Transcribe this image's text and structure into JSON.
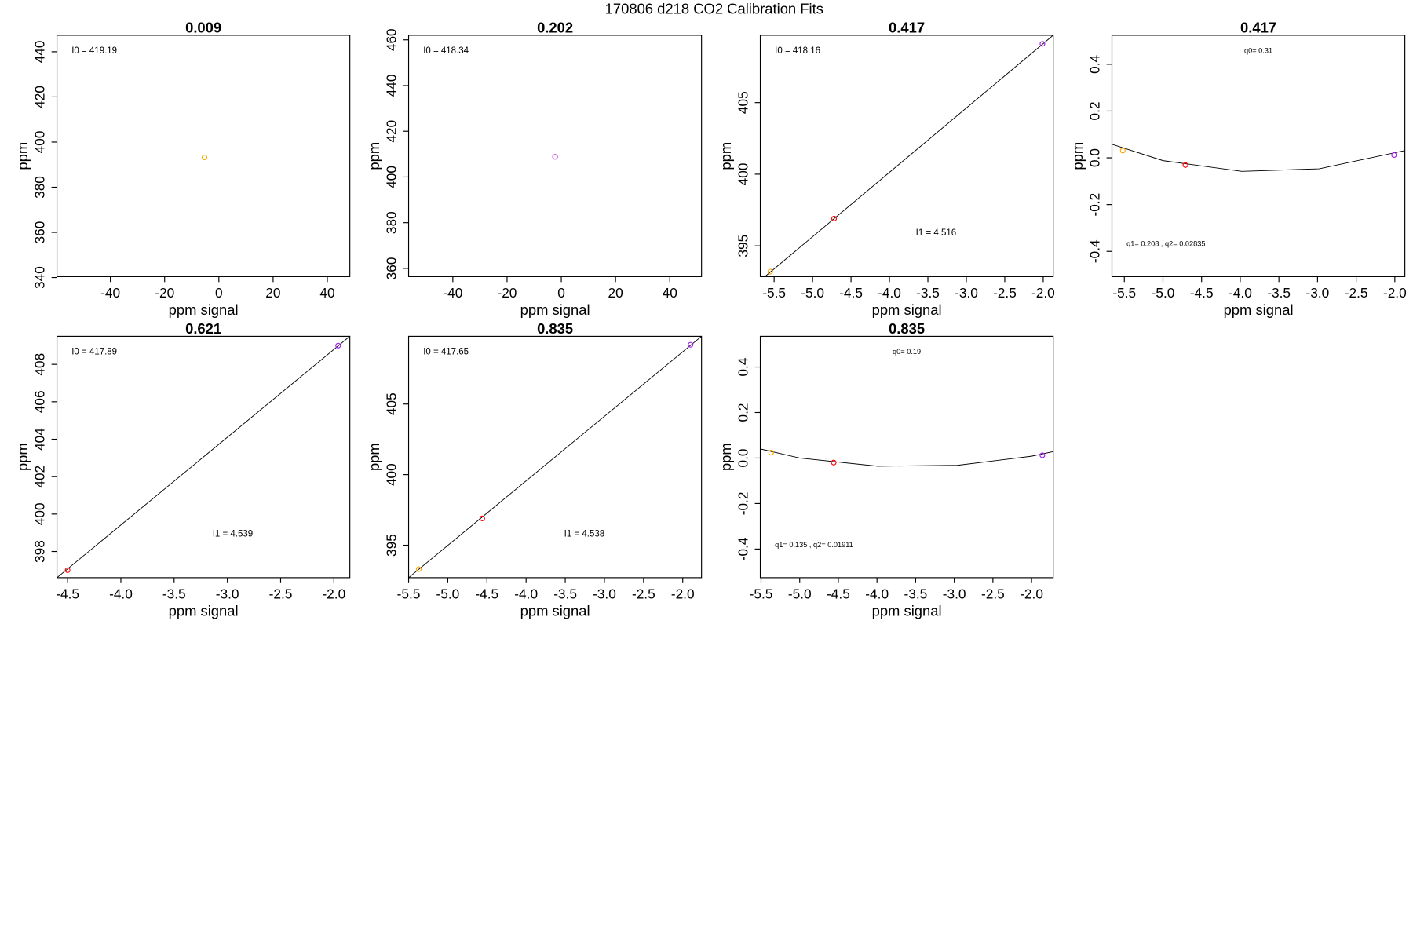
{
  "title": "170806   d218   CO2 Calibration Fits",
  "chart_data": [
    {
      "type": "scatter",
      "title": "0.009",
      "xlabel": "ppm signal",
      "ylabel": "ppm",
      "xlim": [
        -59.7,
        48.3
      ],
      "ylim": [
        340.4,
        447.3
      ],
      "xticks": [
        -40,
        -20,
        0,
        20,
        40
      ],
      "yticks": [
        340,
        360,
        380,
        400,
        420,
        440
      ],
      "points": {
        "x": [
          -5.3
        ],
        "y": [
          393.2
        ],
        "colors": [
          "#ffa500"
        ]
      },
      "annotations": [
        "I0 =  419.19"
      ]
    },
    {
      "type": "scatter",
      "title": "0.202",
      "xlabel": "ppm signal",
      "ylabel": "ppm",
      "xlim": [
        -56.3,
        51.7
      ],
      "ylim": [
        356.4,
        462
      ],
      "xticks": [
        -40,
        -20,
        0,
        20,
        40
      ],
      "yticks": [
        360,
        380,
        400,
        420,
        440,
        460
      ],
      "points": {
        "x": [
          -2.3
        ],
        "y": [
          408.8
        ],
        "colors": [
          "#c020e0"
        ]
      },
      "annotations": [
        "I0 =  418.34"
      ]
    },
    {
      "type": "scatter",
      "title": "0.417",
      "xlabel": "ppm signal",
      "ylabel": "ppm",
      "xlim": [
        -5.68,
        -1.87
      ],
      "ylim": [
        392.85,
        409.7
      ],
      "xticks": [
        {
          "value": -5.5,
          "label": "-5.5"
        },
        {
          "value": -5,
          "label": "-5.0"
        },
        {
          "value": -4.5,
          "label": "-4.5"
        },
        {
          "value": -4,
          "label": "-4.0"
        },
        {
          "value": -3.5,
          "label": "-3.5"
        },
        {
          "value": -3,
          "label": "-3.0"
        },
        {
          "value": -2.5,
          "label": "-2.5"
        },
        {
          "value": -2,
          "label": "-2.0"
        }
      ],
      "yticks": [
        395,
        400,
        405
      ],
      "points": {
        "x": [
          -5.55,
          -4.72,
          -2.01
        ],
        "y": [
          393.2,
          396.9,
          409.1
        ],
        "colors": [
          "#ffa500",
          "#ff0000",
          "#a020f0"
        ]
      },
      "fit": {
        "x": [
          -5.62,
          -1.87
        ],
        "y": [
          392.85,
          409.7
        ]
      },
      "annotations": [
        "I0 =  418.16",
        "I1 =  4.516"
      ]
    },
    {
      "type": "scatter",
      "title": "0.417",
      "xlabel": "ppm signal",
      "ylabel": "ppm",
      "xlim": [
        -5.66,
        -1.87
      ],
      "ylim": [
        -0.508,
        0.524
      ],
      "xticks": [
        {
          "value": -5.5,
          "label": "-5.5"
        },
        {
          "value": -5,
          "label": "-5.0"
        },
        {
          "value": -4.5,
          "label": "-4.5"
        },
        {
          "value": -4,
          "label": "-4.0"
        },
        {
          "value": -3.5,
          "label": "-3.5"
        },
        {
          "value": -3,
          "label": "-3.0"
        },
        {
          "value": -2.5,
          "label": "-2.5"
        },
        {
          "value": -2,
          "label": "-2.0"
        }
      ],
      "yticks": [
        -0.4,
        -0.2,
        {
          "value": 0,
          "label": "0.0"
        },
        0.2,
        0.4
      ],
      "points": {
        "x": [
          -5.52,
          -4.71,
          -2.01
        ],
        "y": [
          0.031,
          -0.031,
          0.012
        ],
        "colors": [
          "#ffa500",
          "#ff0000",
          "#a020f0"
        ]
      },
      "fit": {
        "x": [
          -5.66,
          -5.0,
          -3.98,
          -2.98,
          -1.87
        ],
        "y": [
          0.058,
          -0.012,
          -0.058,
          -0.047,
          0.031
        ]
      },
      "annotations": [
        "q0= 0.31",
        "q1= 0.208 , q2= 0.02835"
      ]
    },
    {
      "type": "scatter",
      "title": "0.621",
      "xlabel": "ppm signal",
      "ylabel": "ppm",
      "xlim": [
        -4.6,
        -1.85
      ],
      "ylim": [
        396.6,
        409.5
      ],
      "xticks": [
        -4.5,
        {
          "value": -4,
          "label": "-4.0"
        },
        -3.5,
        {
          "value": -3,
          "label": "-3.0"
        },
        -2.5,
        {
          "value": -2,
          "label": "-2.0"
        }
      ],
      "yticks": [
        398,
        400,
        402,
        404,
        406,
        408
      ],
      "points": {
        "x": [
          -4.5,
          -1.96
        ],
        "y": [
          397.0,
          409.0
        ],
        "colors": [
          "#ff0000",
          "#a020f0"
        ]
      },
      "fit": {
        "x": [
          -4.6,
          -1.85
        ],
        "y": [
          396.6,
          409.5
        ]
      },
      "annotations": [
        "I0 =  417.89",
        "I1 =  4.539"
      ]
    },
    {
      "type": "scatter",
      "title": "0.835",
      "xlabel": "ppm signal",
      "ylabel": "ppm",
      "xlim": [
        -5.5,
        -1.76
      ],
      "ylim": [
        392.7,
        409.8
      ],
      "xticks": [
        -5.5,
        {
          "value": -5,
          "label": "-5.0"
        },
        -4.5,
        {
          "value": -4,
          "label": "-4.0"
        },
        -3.5,
        {
          "value": -3,
          "label": "-3.0"
        },
        -2.5,
        {
          "value": -2,
          "label": "-2.0"
        }
      ],
      "yticks": [
        395,
        400,
        405
      ],
      "points": {
        "x": [
          -5.37,
          -4.56,
          -1.9
        ],
        "y": [
          393.3,
          396.9,
          409.2
        ],
        "colors": [
          "#ffa500",
          "#ff0000",
          "#a020f0"
        ]
      },
      "fit": {
        "x": [
          -5.5,
          -1.76
        ],
        "y": [
          392.7,
          409.8
        ]
      },
      "annotations": [
        "I0 =  417.65",
        "I1 =  4.538"
      ]
    },
    {
      "type": "scatter",
      "title": "0.835",
      "xlabel": "ppm signal",
      "ylabel": "ppm",
      "xlim": [
        -5.51,
        -1.72
      ],
      "ylim": [
        -0.526,
        0.535
      ],
      "xticks": [
        -5.5,
        {
          "value": -5,
          "label": "-5.0"
        },
        -4.5,
        {
          "value": -4,
          "label": "-4.0"
        },
        -3.5,
        {
          "value": -3,
          "label": "-3.0"
        },
        -2.5,
        {
          "value": -2,
          "label": "-2.0"
        }
      ],
      "yticks": [
        -0.4,
        -0.2,
        {
          "value": 0,
          "label": "0.0"
        },
        0.2,
        0.4
      ],
      "points": {
        "x": [
          -5.37,
          -4.56,
          -1.86
        ],
        "y": [
          0.024,
          -0.02,
          0.012
        ],
        "colors": [
          "#ffa500",
          "#ff0000",
          "#a020f0"
        ]
      },
      "fit": {
        "x": [
          -5.51,
          -5.0,
          -3.99,
          -2.96,
          -2.0,
          -1.72
        ],
        "y": [
          0.04,
          0.0,
          -0.036,
          -0.032,
          0.008,
          0.028
        ]
      },
      "annotations": [
        "q0= 0.19",
        "q1= 0.135 , q2= 0.01911"
      ]
    }
  ]
}
